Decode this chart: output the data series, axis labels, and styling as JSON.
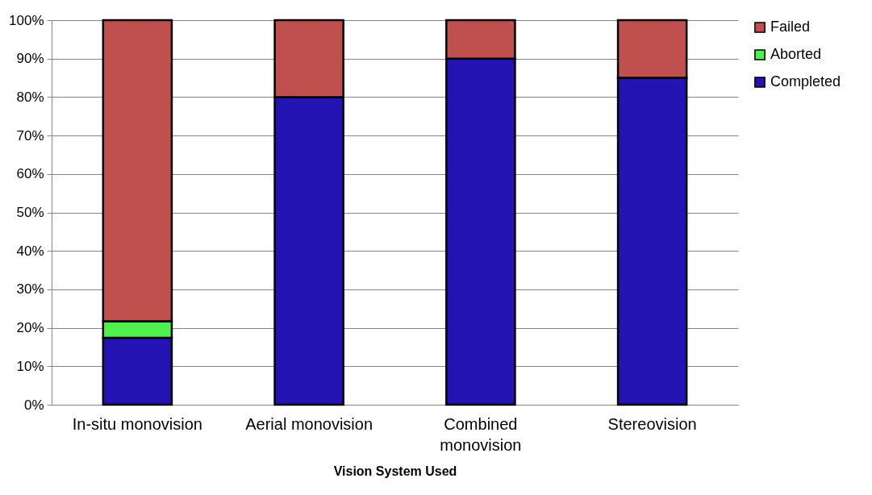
{
  "chart_data": {
    "type": "bar",
    "stacked": true,
    "xlabel": "Vision System Used",
    "categories": [
      "In-situ monovision",
      "Aerial monovision",
      "Combined monovision",
      "Stereovision"
    ],
    "series": [
      {
        "name": "Completed",
        "color": "#2213b2",
        "values": [
          17.4,
          80,
          90,
          85
        ]
      },
      {
        "name": "Aborted",
        "color": "#4ef04e",
        "values": [
          4.3,
          0,
          0,
          0
        ]
      },
      {
        "name": "Failed",
        "color": "#c0504d",
        "values": [
          78.3,
          20,
          10,
          15
        ]
      }
    ],
    "ylim": [
      0,
      100
    ],
    "yticks": [
      {
        "value": 0,
        "label": "0%"
      },
      {
        "value": 10,
        "label": "10%"
      },
      {
        "value": 20,
        "label": "20%"
      },
      {
        "value": 30,
        "label": "30%"
      },
      {
        "value": 40,
        "label": "40%"
      },
      {
        "value": 50,
        "label": "50%"
      },
      {
        "value": 60,
        "label": "60%"
      },
      {
        "value": 70,
        "label": "70%"
      },
      {
        "value": 80,
        "label": "80%"
      },
      {
        "value": 90,
        "label": "90%"
      },
      {
        "value": 100,
        "label": "100%"
      }
    ],
    "grid": "y",
    "legend": "right"
  }
}
